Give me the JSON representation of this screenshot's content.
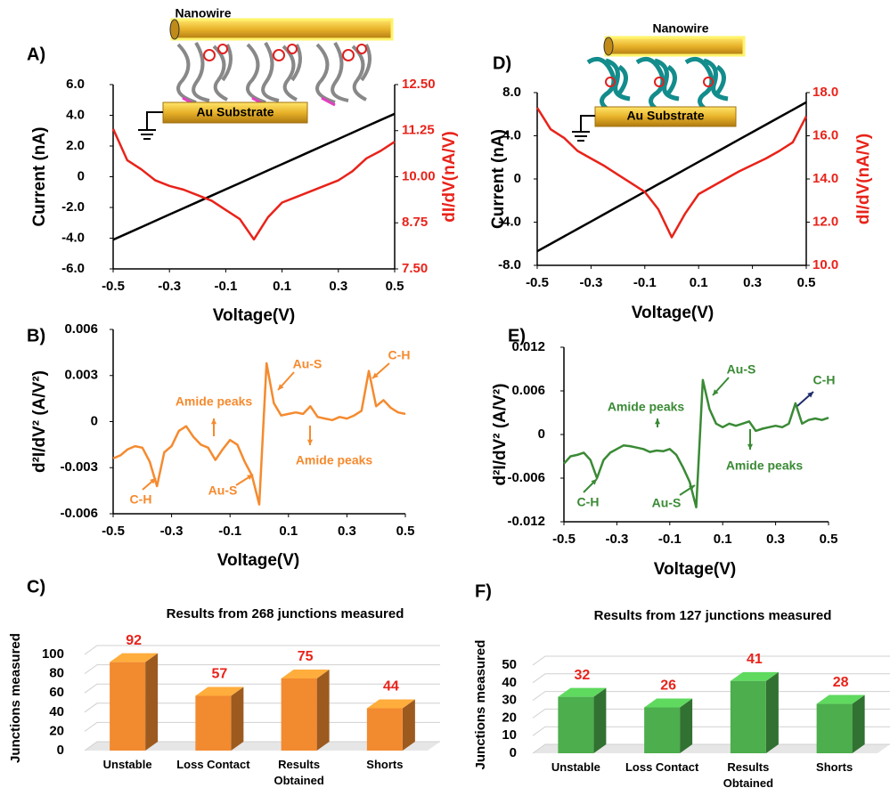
{
  "chart_data": [
    {
      "type": "line",
      "label": "A)",
      "inset_labels": [
        "Nanowire",
        "Au Substrate"
      ],
      "xlabel": "Voltage(V)",
      "ylabel": "Current (nA)",
      "y2label": "dI/dV(nA/V)",
      "x": [
        -0.5,
        -0.45,
        -0.4,
        -0.35,
        -0.3,
        -0.25,
        -0.2,
        -0.15,
        -0.1,
        -0.05,
        0,
        0.05,
        0.1,
        0.15,
        0.2,
        0.25,
        0.3,
        0.35,
        0.4,
        0.45,
        0.5
      ],
      "xlim": [
        -0.5,
        0.5
      ],
      "xticks": [
        -0.5,
        -0.3,
        -0.1,
        0.1,
        0.3,
        0.5
      ],
      "ylim": [
        -6,
        6
      ],
      "yticks": [
        {
          "value": -6,
          "label": "-6.0"
        },
        {
          "value": -4,
          "label": "-4.0"
        },
        {
          "value": -2,
          "label": "-2.0"
        },
        0,
        {
          "value": 2,
          "label": "2.0"
        },
        {
          "value": 4,
          "label": "4.0"
        },
        {
          "value": 6,
          "label": "6.0"
        }
      ],
      "y2lim": [
        7.5,
        12.5
      ],
      "y2ticks": [
        {
          "value": 7.5,
          "label": "7.50"
        },
        {
          "value": 8.75,
          "label": "8.75"
        },
        {
          "value": 10,
          "label": "10.00"
        },
        {
          "value": 11.25,
          "label": "11.25"
        },
        {
          "value": 12.5,
          "label": "12.50"
        }
      ],
      "series": [
        {
          "color": "#000000",
          "values": [
            -4.1,
            -3.69,
            -3.28,
            -2.87,
            -2.46,
            -2.05,
            -1.64,
            -1.23,
            -0.82,
            -0.41,
            0,
            0.41,
            0.82,
            1.23,
            1.64,
            2.05,
            2.46,
            2.87,
            3.28,
            3.69,
            4.1
          ]
        },
        {
          "color": "#e8231a",
          "axis": "y2",
          "values": [
            11.3,
            10.45,
            10.2,
            9.9,
            9.75,
            9.65,
            9.5,
            9.35,
            9.1,
            8.85,
            8.3,
            8.9,
            9.3,
            9.45,
            9.6,
            9.75,
            9.9,
            10.15,
            10.5,
            10.7,
            10.95
          ]
        }
      ]
    },
    {
      "type": "line",
      "label": "B)",
      "xlabel": "Voltage(V)",
      "ylabel": "d²I/dV² (A/V²)",
      "annotations": [
        "Amide peaks",
        "Amide peaks",
        "Au-S",
        "Au-S",
        "C-H",
        "C-H"
      ],
      "x": [
        -0.5,
        -0.475,
        -0.45,
        -0.425,
        -0.4,
        -0.375,
        -0.35,
        -0.325,
        -0.3,
        -0.275,
        -0.25,
        -0.225,
        -0.2,
        -0.175,
        -0.15,
        -0.125,
        -0.1,
        -0.075,
        -0.05,
        -0.025,
        0,
        0.025,
        0.05,
        0.075,
        0.1,
        0.125,
        0.15,
        0.175,
        0.2,
        0.225,
        0.25,
        0.275,
        0.3,
        0.325,
        0.35,
        0.375,
        0.4,
        0.425,
        0.45,
        0.475,
        0.5
      ],
      "xlim": [
        -0.5,
        0.5
      ],
      "xticks": [
        -0.5,
        -0.3,
        -0.1,
        0.1,
        0.3,
        0.5
      ],
      "ylim": [
        -0.006,
        0.006
      ],
      "yticks": [
        -0.006,
        -0.003,
        0,
        0.003,
        0.006
      ],
      "series": [
        {
          "color": "#f58a2e",
          "values": [
            -0.0024,
            -0.0022,
            -0.0018,
            -0.0016,
            -0.0017,
            -0.0026,
            -0.0042,
            -0.002,
            -0.0016,
            -0.0006,
            -0.0003,
            -0.001,
            -0.0015,
            -0.0017,
            -0.0025,
            -0.0018,
            -0.0012,
            -0.0015,
            -0.0026,
            -0.0035,
            -0.0054,
            0.0038,
            0.0012,
            0.0004,
            0.0005,
            0.0006,
            0.0005,
            0.001,
            0.0003,
            0.0002,
            0.0001,
            0.0003,
            0.0002,
            0.0004,
            0.0007,
            0.0033,
            0.001,
            0.0014,
            0.0009,
            0.0006,
            0.0005
          ]
        }
      ]
    },
    {
      "type": "bar",
      "label": "C)",
      "title": "Results from 268 junctions measured",
      "ylabel": "Junctions measured",
      "categories": [
        "Unstable",
        "Loss Contact",
        "Results\nObtained",
        "Shorts"
      ],
      "values": [
        92,
        57,
        75,
        44
      ],
      "color": "#f28a30",
      "value_color": "#e8231a",
      "ylim": [
        0,
        100
      ],
      "yticks": [
        0,
        20,
        40,
        60,
        80,
        100
      ],
      "grid": true
    },
    {
      "type": "line",
      "label": "D)",
      "inset_labels": [
        "Nanowire",
        "Au Substrate"
      ],
      "xlabel": "Voltage(V)",
      "ylabel": "Current (nA)",
      "y2label": "dI/dV(nA/V)",
      "x": [
        -0.5,
        -0.45,
        -0.4,
        -0.35,
        -0.3,
        -0.25,
        -0.2,
        -0.15,
        -0.1,
        -0.05,
        0,
        0.05,
        0.1,
        0.15,
        0.2,
        0.25,
        0.3,
        0.35,
        0.4,
        0.45,
        0.5
      ],
      "xlim": [
        -0.5,
        0.5
      ],
      "xticks": [
        -0.5,
        -0.3,
        -0.1,
        0.1,
        0.3,
        0.5
      ],
      "ylim": [
        -8,
        8
      ],
      "yticks": [
        {
          "value": -8,
          "label": "-8.0"
        },
        {
          "value": -4,
          "label": "-4.0"
        },
        0,
        {
          "value": 4,
          "label": "4.0"
        },
        {
          "value": 8,
          "label": "8.0"
        }
      ],
      "y2lim": [
        10,
        18
      ],
      "y2ticks": [
        {
          "value": 10,
          "label": "10.0"
        },
        {
          "value": 12,
          "label": "12.0"
        },
        {
          "value": 14,
          "label": "14.0"
        },
        {
          "value": 16,
          "label": "16.0"
        },
        {
          "value": 18,
          "label": "18.0"
        }
      ],
      "series": [
        {
          "color": "#000000",
          "values": [
            -6.7,
            -6.01,
            -5.32,
            -4.63,
            -3.94,
            -3.25,
            -2.56,
            -1.87,
            -1.18,
            -0.49,
            0.2,
            0.89,
            1.58,
            2.27,
            2.96,
            3.65,
            4.34,
            5.03,
            5.72,
            6.41,
            7.1
          ]
        },
        {
          "color": "#e8231a",
          "axis": "y2",
          "values": [
            17.3,
            16.3,
            15.9,
            15.3,
            14.95,
            14.6,
            14.2,
            13.8,
            13.4,
            12.6,
            11.3,
            12.4,
            13.3,
            13.65,
            14.0,
            14.35,
            14.65,
            14.95,
            15.3,
            15.7,
            16.9
          ]
        }
      ]
    },
    {
      "type": "line",
      "label": "E)",
      "xlabel": "Voltage(V)",
      "ylabel": "d²I/dV² (A/V²)",
      "annotations": [
        "Amide peaks",
        "Amide peaks",
        "Au-S",
        "Au-S",
        "C-H",
        "C-H"
      ],
      "x": [
        -0.5,
        -0.475,
        -0.45,
        -0.425,
        -0.4,
        -0.375,
        -0.35,
        -0.325,
        -0.3,
        -0.275,
        -0.25,
        -0.225,
        -0.2,
        -0.175,
        -0.15,
        -0.125,
        -0.1,
        -0.075,
        -0.05,
        -0.025,
        0,
        0.025,
        0.05,
        0.075,
        0.1,
        0.125,
        0.15,
        0.175,
        0.2,
        0.225,
        0.25,
        0.275,
        0.3,
        0.325,
        0.35,
        0.375,
        0.4,
        0.425,
        0.45,
        0.475,
        0.5
      ],
      "xlim": [
        -0.5,
        0.5
      ],
      "xticks": [
        -0.5,
        -0.3,
        -0.1,
        0.1,
        0.3,
        0.5
      ],
      "ylim": [
        -0.012,
        0.012
      ],
      "yticks": [
        -0.012,
        -0.006,
        0,
        0.006,
        0.012
      ],
      "series": [
        {
          "color": "#3a8a35",
          "values": [
            -0.004,
            -0.003,
            -0.0028,
            -0.0025,
            -0.0035,
            -0.006,
            -0.0035,
            -0.0025,
            -0.002,
            -0.0015,
            -0.0016,
            -0.0018,
            -0.002,
            -0.0024,
            -0.0022,
            -0.0023,
            -0.002,
            -0.0028,
            -0.0045,
            -0.0065,
            -0.01,
            0.0075,
            0.0035,
            0.0015,
            0.001,
            0.0015,
            0.0012,
            0.0015,
            0.0018,
            0.0005,
            0.0008,
            0.001,
            0.0012,
            0.001,
            0.0015,
            0.0043,
            0.0015,
            0.002,
            0.0022,
            0.002,
            0.0023
          ]
        }
      ]
    },
    {
      "type": "bar",
      "label": "F)",
      "title": "Results from 127 junctions measured",
      "ylabel": "Junctions measured",
      "categories": [
        "Unstable",
        "Loss Contact",
        "Results\nObtained",
        "Shorts"
      ],
      "values": [
        32,
        26,
        41,
        28
      ],
      "color": "#4cae4c",
      "value_color": "#e8231a",
      "ylim": [
        0,
        50
      ],
      "yticks": [
        0,
        10,
        20,
        30,
        40,
        50
      ],
      "grid": true
    }
  ]
}
